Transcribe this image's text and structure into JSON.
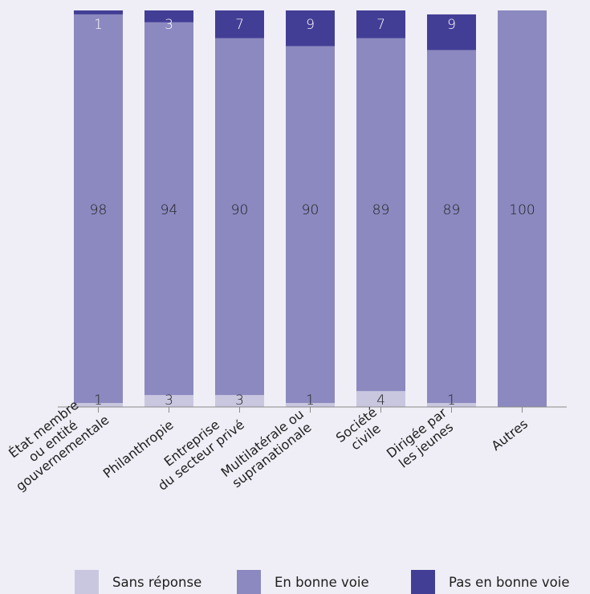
{
  "colors": {
    "background": "#efeef6",
    "sans_reponse": "#c9c7e0",
    "en_bonne_voie": "#8b89bf",
    "pas_en_bonne_voie": "#433e95",
    "axis": "#8a8a8a",
    "text": "#1e1e1e",
    "label_on_dark": "#ffffff"
  },
  "chart_data": {
    "type": "bar",
    "stacked": true,
    "categories": [
      "État membre ou entité gouvernementale",
      "Philanthropie",
      "Entreprise du secteur privé",
      "Multilatérale ou supranationale",
      "Société civile",
      "Dirigée par les jeunes",
      "Autres"
    ],
    "category_lines": [
      [
        "État membre",
        "ou entité",
        "gouvernementale"
      ],
      [
        "Philanthropie"
      ],
      [
        "Entreprise",
        "du secteur privé"
      ],
      [
        "Multilatérale ou",
        "supranationale"
      ],
      [
        "Société",
        "civile"
      ],
      [
        "Dirigée par",
        "les jeunes"
      ],
      [
        "Autres"
      ]
    ],
    "series": [
      {
        "name": "Sans réponse",
        "values": [
          1,
          3,
          3,
          1,
          4,
          1,
          0
        ],
        "labels": [
          "1",
          "3",
          "3",
          "1",
          "4",
          "1",
          ""
        ]
      },
      {
        "name": "En bonne voie",
        "values": [
          98,
          94,
          90,
          90,
          89,
          89,
          100
        ],
        "labels": [
          "98",
          "94",
          "90",
          "90",
          "89",
          "89",
          "100"
        ]
      },
      {
        "name": "Pas en bonne voie",
        "values": [
          1,
          3,
          7,
          9,
          7,
          9,
          0
        ],
        "labels": [
          "1",
          "3",
          "7",
          "9",
          "7",
          "9",
          ""
        ]
      }
    ],
    "ylim": [
      0,
      100
    ],
    "grid": false,
    "legend_position": "bottom"
  }
}
